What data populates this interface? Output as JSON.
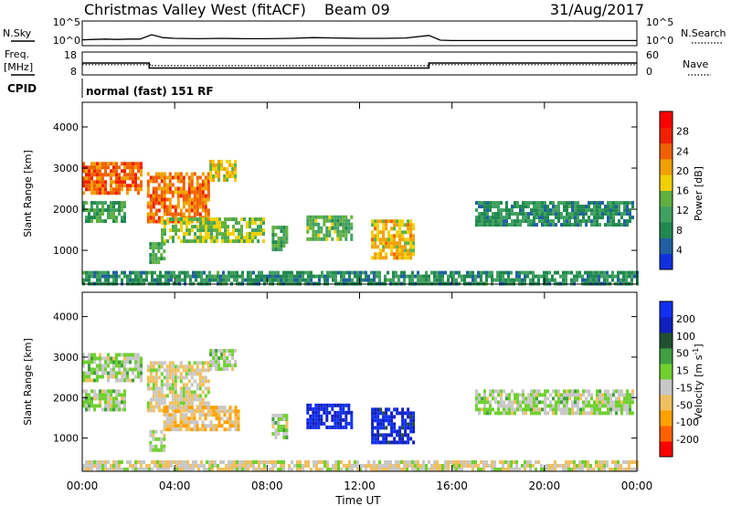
{
  "header": {
    "title": "Christmas Valley West (fitACF)",
    "beam": "Beam 09",
    "date": "31/Aug/2017"
  },
  "colors": {
    "power": [
      "#1030e0",
      "#2060a0",
      "#208850",
      "#40a060",
      "#60b040",
      "#f0d000",
      "#f0a000",
      "#f06000",
      "#f02000",
      "#ff0000"
    ],
    "velocity": [
      "#ff0000",
      "#ff6000",
      "#ffa000",
      "#f0c060",
      "#c8c8c8",
      "#70d030",
      "#40a040",
      "#205030",
      "#1020c0",
      "#1030f0"
    ]
  },
  "chart_data": [
    {
      "type": "line",
      "panel": "noise",
      "left_label": "N.Sky",
      "right_label": "N.Search",
      "left_ticks": [
        "10^5",
        "10^0"
      ],
      "right_ticks": [
        "10^5",
        "10^0"
      ],
      "series": [
        {
          "x": [
            0,
            0.5,
            1.0,
            1.5,
            2.0,
            2.5,
            3.0,
            3.5,
            4.0,
            5.0,
            6.0,
            7.0,
            8.0,
            9.0,
            10.0,
            11.0,
            12.0,
            13.0,
            14.0,
            15.0,
            15.5,
            16.0,
            18.0,
            20.0,
            22.0,
            24.0
          ],
          "y": [
            0.6,
            0.7,
            0.8,
            0.7,
            0.8,
            0.8,
            2.0,
            1.2,
            1.0,
            0.9,
            1.0,
            0.9,
            0.9,
            1.0,
            1.2,
            1.1,
            1.0,
            1.0,
            1.1,
            1.8,
            0.5,
            0.4,
            0.4,
            0.4,
            0.4,
            0.4
          ]
        }
      ]
    },
    {
      "type": "line",
      "panel": "frequency",
      "left_label": "Freq.",
      "left_unit": "[MHz]",
      "right_label": "Nave",
      "left_ticks": [
        "18",
        "8"
      ],
      "right_ticks": [
        "60",
        "0"
      ],
      "series": [
        {
          "x": [
            0,
            2.9,
            2.9,
            15.0,
            15.0,
            24.0
          ],
          "y": [
            13,
            13,
            10.5,
            10.5,
            13,
            13
          ]
        },
        {
          "x": [
            0,
            3.0,
            3.0,
            15.0,
            15.0,
            24.0
          ],
          "y": [
            25,
            25,
            22,
            22,
            25,
            25
          ]
        }
      ]
    },
    {
      "type": "heatmap",
      "panel": "power",
      "cpid_label": "CPID",
      "cpid_text": "normal (fast) 151 RF",
      "ylabel": "Slant Range [km]",
      "xlabel": "",
      "yticks": [
        1000,
        2000,
        3000,
        4000
      ],
      "ylim": [
        180,
        4600
      ],
      "colorbar": {
        "label": "Power [dB]",
        "ticks": [
          4,
          8,
          12,
          16,
          20,
          24,
          28
        ],
        "range": [
          0,
          32
        ]
      },
      "regions": [
        {
          "t": [
            0.0,
            2.5
          ],
          "r": [
            2400,
            3150
          ],
          "value": 24
        },
        {
          "t": [
            0.0,
            1.8
          ],
          "r": [
            1700,
            2200
          ],
          "value": 11
        },
        {
          "t": [
            2.8,
            5.5
          ],
          "r": [
            1700,
            2900
          ],
          "value": 23
        },
        {
          "t": [
            5.5,
            6.6
          ],
          "r": [
            2700,
            3200
          ],
          "value": 18
        },
        {
          "t": [
            3.4,
            7.8
          ],
          "r": [
            1200,
            1800
          ],
          "value": 15
        },
        {
          "t": [
            2.9,
            3.6
          ],
          "r": [
            700,
            1200
          ],
          "value": 12
        },
        {
          "t": [
            8.2,
            8.8
          ],
          "r": [
            1000,
            1600
          ],
          "value": 12
        },
        {
          "t": [
            9.7,
            11.6
          ],
          "r": [
            1250,
            1850
          ],
          "value": 13
        },
        {
          "t": [
            12.5,
            14.3
          ],
          "r": [
            850,
            1750
          ],
          "value": 19
        },
        {
          "t": [
            17.0,
            23.8
          ],
          "r": [
            1650,
            2200
          ],
          "value": 9
        },
        {
          "t": [
            0.0,
            24.0
          ],
          "r": [
            200,
            500
          ],
          "value": 9
        }
      ]
    },
    {
      "type": "heatmap",
      "panel": "velocity",
      "ylabel": "Slant Range [km]",
      "xlabel": "Time UT",
      "xticks": [
        "00:00",
        "04:00",
        "08:00",
        "12:00",
        "16:00",
        "20:00",
        "00:00"
      ],
      "yticks": [
        1000,
        2000,
        3000,
        4000
      ],
      "ylim": [
        180,
        4600
      ],
      "colorbar": {
        "label": "Velocity [m s^-1]",
        "ticks": [
          200,
          100,
          50,
          15,
          -15,
          -50,
          -100,
          -200
        ],
        "range": [
          -250,
          250
        ]
      },
      "regions": [
        {
          "t": [
            0.0,
            2.5
          ],
          "r": [
            2400,
            3100
          ],
          "value": 0
        },
        {
          "t": [
            0.0,
            1.8
          ],
          "r": [
            1700,
            2200
          ],
          "value": 0
        },
        {
          "t": [
            2.8,
            5.5
          ],
          "r": [
            1700,
            2900
          ],
          "value": -40
        },
        {
          "t": [
            5.5,
            6.6
          ],
          "r": [
            2700,
            3200
          ],
          "value": 0
        },
        {
          "t": [
            3.5,
            6.8
          ],
          "r": [
            1250,
            1800
          ],
          "value": -80
        },
        {
          "t": [
            2.9,
            3.6
          ],
          "r": [
            700,
            1200
          ],
          "value": 0
        },
        {
          "t": [
            8.2,
            8.8
          ],
          "r": [
            1000,
            1600
          ],
          "value": 0
        },
        {
          "t": [
            9.7,
            11.6
          ],
          "r": [
            1250,
            1850
          ],
          "value": 210
        },
        {
          "t": [
            12.5,
            14.3
          ],
          "r": [
            850,
            1750
          ],
          "value": 200
        },
        {
          "t": [
            17.0,
            23.8
          ],
          "r": [
            1650,
            2200
          ],
          "value": 0
        },
        {
          "t": [
            0.0,
            24.0
          ],
          "r": [
            200,
            450
          ],
          "value": -40
        }
      ]
    }
  ]
}
